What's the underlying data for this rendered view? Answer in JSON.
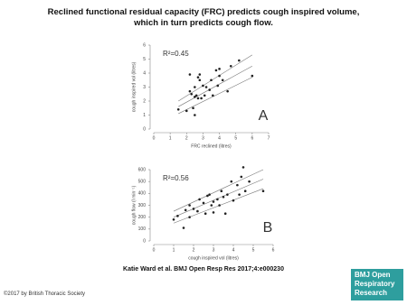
{
  "page": {
    "title": "Reclined functional residual capacity (FRC) predicts cough inspired volume, which in turn predicts cough flow.",
    "citation": "Katie Ward et al. BMJ Open Resp Res 2017;4:e000230",
    "copyright": "©2017 by British Thoracic Society",
    "logo": [
      "BMJ Open",
      "Respiratory",
      "Research"
    ]
  },
  "chart_data": [
    {
      "type": "scatter",
      "panel": "A",
      "annotation": "R²=0.45",
      "x_label": "FRC reclined (litres)",
      "y_label": "cough inspired vol (litres)",
      "xlim": [
        0,
        7
      ],
      "xticks": [
        0,
        1,
        2,
        3,
        4,
        5,
        6,
        7
      ],
      "ylim": [
        0,
        6
      ],
      "yticks": [
        0,
        1,
        2,
        3,
        4,
        5,
        6
      ],
      "color": "#222222",
      "x": [
        1.5,
        2,
        2.2,
        2.3,
        2.5,
        2.6,
        2.7,
        2.8,
        2.5,
        2.9,
        3,
        3.1,
        3.2,
        2.4,
        2.5,
        2.7,
        3.5,
        3.6,
        3.8,
        3.9,
        4,
        4,
        4.2,
        4.5,
        4.7,
        5.2,
        6,
        2.2,
        2.8,
        3.4
      ],
      "y": [
        1.4,
        1.3,
        2.7,
        2.5,
        2.3,
        2.4,
        3.7,
        3.5,
        3.0,
        2.2,
        3.1,
        2.4,
        3.0,
        1.5,
        1.0,
        2.2,
        3.5,
        2.4,
        4.2,
        3.1,
        4.3,
        3.8,
        3.5,
        2.7,
        4.5,
        4.9,
        3.8,
        3.9,
        3.9,
        2.8
      ],
      "lines": [
        {
          "x": [
            1.5,
            6
          ],
          "y": [
            1.6,
            4.5
          ]
        },
        {
          "x": [
            1.5,
            6
          ],
          "y": [
            2.0,
            5.3
          ]
        },
        {
          "x": [
            1.5,
            6
          ],
          "y": [
            1.1,
            3.7
          ]
        }
      ]
    },
    {
      "type": "scatter",
      "panel": "B",
      "annotation": "R²=0.56",
      "x_label": "cough inspired vol (litres)",
      "y_label": "cough flow (l min⁻¹)",
      "xlim": [
        0,
        6
      ],
      "xticks": [
        0,
        1,
        2,
        3,
        4,
        5,
        6
      ],
      "ylim": [
        0,
        600
      ],
      "yticks": [
        0,
        100,
        200,
        300,
        400,
        500,
        600
      ],
      "color": "#222222",
      "x": [
        1,
        1.2,
        1.5,
        1.6,
        1.8,
        1.8,
        2,
        2.2,
        2.3,
        2.5,
        2.6,
        2.8,
        2.9,
        3,
        3,
        3.2,
        3.3,
        3.4,
        3.5,
        3.7,
        3.9,
        4,
        4.2,
        4.3,
        4.4,
        4.5,
        4.6,
        4.8,
        5.5,
        3.6,
        2.7
      ],
      "y": [
        180,
        210,
        110,
        260,
        200,
        300,
        270,
        250,
        350,
        320,
        230,
        390,
        300,
        240,
        330,
        350,
        300,
        420,
        370,
        390,
        500,
        340,
        470,
        390,
        540,
        620,
        420,
        500,
        420,
        230,
        380
      ],
      "lines": [
        {
          "x": [
            1,
            5.5
          ],
          "y": [
            200,
            520
          ]
        },
        {
          "x": [
            1,
            5.5
          ],
          "y": [
            250,
            600
          ]
        },
        {
          "x": [
            1,
            5.5
          ],
          "y": [
            150,
            440
          ]
        }
      ]
    }
  ]
}
